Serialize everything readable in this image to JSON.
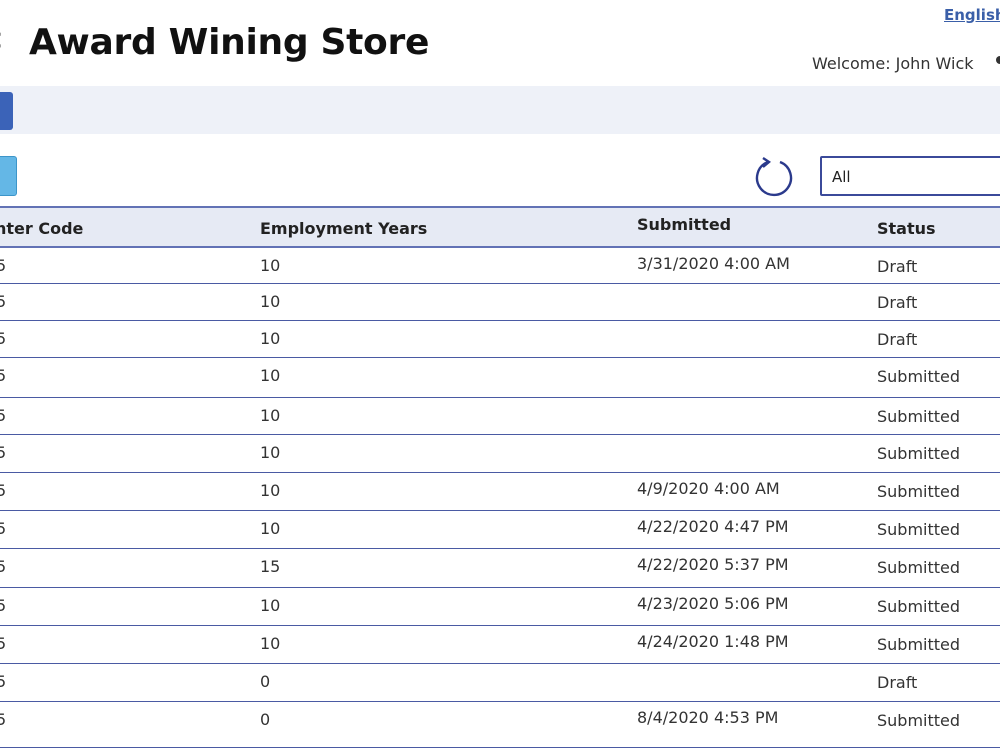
{
  "header": {
    "back_glyph": "‹",
    "title": "Award Wining Store",
    "language": "English",
    "welcome": "Welcome: John Wick"
  },
  "filter": {
    "value": "All"
  },
  "table": {
    "columns": [
      "nter Code",
      "Employment Years",
      "Submitted",
      "Status"
    ],
    "rows": [
      {
        "code": "5",
        "years": "10",
        "submitted": "3/31/2020 4:00 AM",
        "status": "Draft"
      },
      {
        "code": "5",
        "years": "10",
        "submitted": "",
        "status": "Draft"
      },
      {
        "code": "5",
        "years": "10",
        "submitted": "",
        "status": "Draft"
      },
      {
        "code": "5",
        "years": "10",
        "submitted": "",
        "status": "Submitted"
      },
      {
        "code": "5",
        "years": "10",
        "submitted": "",
        "status": "Submitted"
      },
      {
        "code": "5",
        "years": "10",
        "submitted": "",
        "status": "Submitted"
      },
      {
        "code": "5",
        "years": "10",
        "submitted": "4/9/2020 4:00 AM",
        "status": "Submitted"
      },
      {
        "code": "5",
        "years": "10",
        "submitted": "4/22/2020 4:47 PM",
        "status": "Submitted"
      },
      {
        "code": "5",
        "years": "15",
        "submitted": "4/22/2020 5:37 PM",
        "status": "Submitted"
      },
      {
        "code": "5",
        "years": "10",
        "submitted": "4/23/2020 5:06 PM",
        "status": "Submitted"
      },
      {
        "code": "5",
        "years": "10",
        "submitted": "4/24/2020 1:48 PM",
        "status": "Submitted"
      },
      {
        "code": "5",
        "years": "0",
        "submitted": "",
        "status": "Draft"
      },
      {
        "code": "5",
        "years": "0",
        "submitted": "8/4/2020 4:53 PM",
        "status": "Submitted"
      }
    ]
  },
  "colors": {
    "nav_button": "#3b63b8",
    "action_button": "#64b7e6",
    "table_border": "#4a5aa3",
    "header_bg": "#e6eaf4",
    "link": "#3a5fa8"
  },
  "icons": [
    "back-icon",
    "user-icon",
    "refresh-icon"
  ]
}
